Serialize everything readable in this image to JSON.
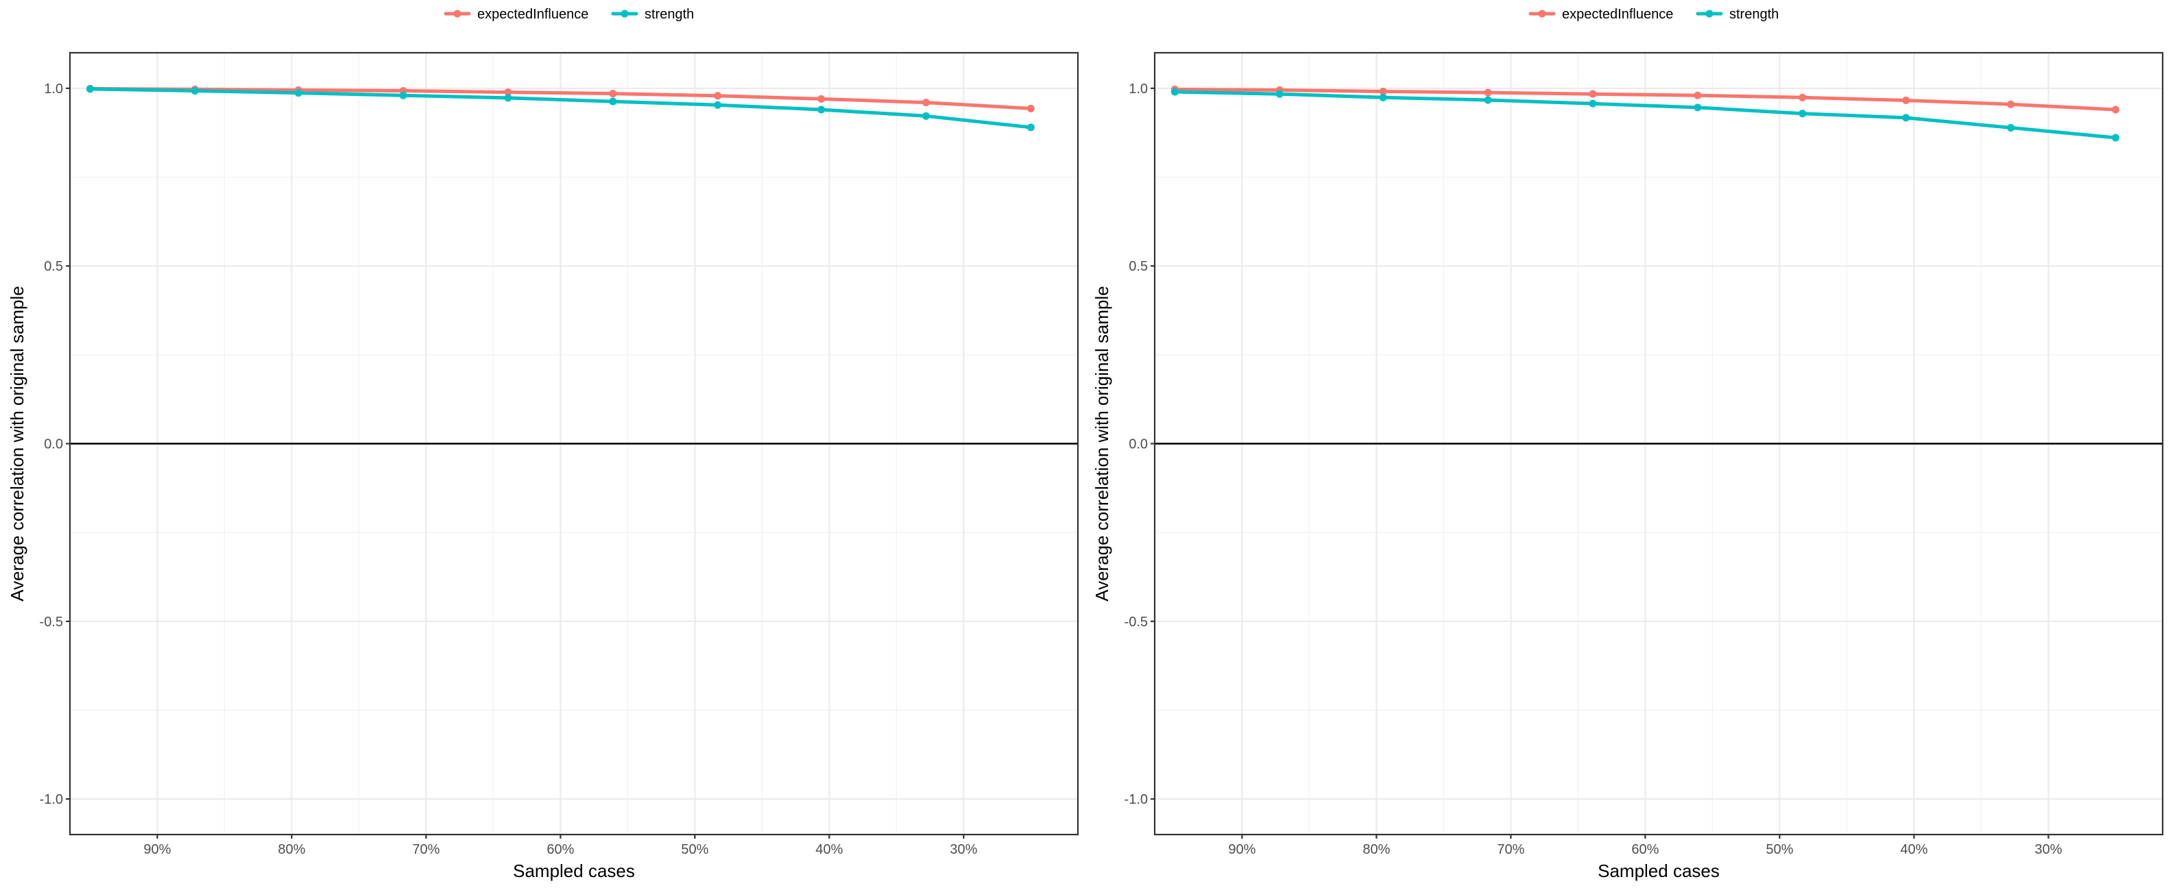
{
  "chart_data": [
    {
      "type": "line",
      "xlabel": "Sampled cases",
      "ylabel": "Average correlation with original sample",
      "ylim": [
        -1.1,
        1.1
      ],
      "xlim": [
        0.965,
        0.215
      ],
      "x_reversed": true,
      "y_ticks": [
        "-1.0",
        "-0.5",
        "0.0",
        "0.5",
        "1.0"
      ],
      "y_tick_values": [
        -1.0,
        -0.5,
        0.0,
        0.5,
        1.0
      ],
      "x_ticks": [
        "90%",
        "80%",
        "70%",
        "60%",
        "50%",
        "40%",
        "30%"
      ],
      "x_tick_values": [
        0.9,
        0.8,
        0.7,
        0.6,
        0.5,
        0.4,
        0.3
      ],
      "hline": 0,
      "grid": true,
      "legend_position": "top",
      "x": [
        0.95,
        0.872,
        0.795,
        0.717,
        0.639,
        0.561,
        0.483,
        0.406,
        0.328,
        0.25
      ],
      "series": [
        {
          "name": "expectedInfluence",
          "color": "#F8766D",
          "values": [
            0.999,
            0.997,
            0.995,
            0.993,
            0.989,
            0.985,
            0.979,
            0.97,
            0.96,
            0.943
          ]
        },
        {
          "name": "strength",
          "color": "#00BFC4",
          "values": [
            0.998,
            0.993,
            0.987,
            0.98,
            0.973,
            0.963,
            0.953,
            0.94,
            0.922,
            0.89
          ]
        }
      ]
    },
    {
      "type": "line",
      "xlabel": "Sampled cases",
      "ylabel": "Average correlation with original sample",
      "ylim": [
        -1.1,
        1.1
      ],
      "xlim": [
        0.965,
        0.215
      ],
      "x_reversed": true,
      "y_ticks": [
        "-1.0",
        "-0.5",
        "0.0",
        "0.5",
        "1.0"
      ],
      "y_tick_values": [
        -1.0,
        -0.5,
        0.0,
        0.5,
        1.0
      ],
      "x_ticks": [
        "90%",
        "80%",
        "70%",
        "60%",
        "50%",
        "40%",
        "30%"
      ],
      "x_tick_values": [
        0.9,
        0.8,
        0.7,
        0.6,
        0.5,
        0.4,
        0.3
      ],
      "hline": 0,
      "grid": true,
      "legend_position": "top",
      "x": [
        0.95,
        0.872,
        0.795,
        0.717,
        0.639,
        0.561,
        0.483,
        0.406,
        0.328,
        0.25
      ],
      "series": [
        {
          "name": "expectedInfluence",
          "color": "#F8766D",
          "values": [
            0.997,
            0.995,
            0.991,
            0.988,
            0.984,
            0.98,
            0.974,
            0.966,
            0.955,
            0.94
          ]
        },
        {
          "name": "strength",
          "color": "#00BFC4",
          "values": [
            0.99,
            0.984,
            0.974,
            0.967,
            0.957,
            0.946,
            0.929,
            0.917,
            0.889,
            0.861
          ]
        }
      ]
    }
  ]
}
